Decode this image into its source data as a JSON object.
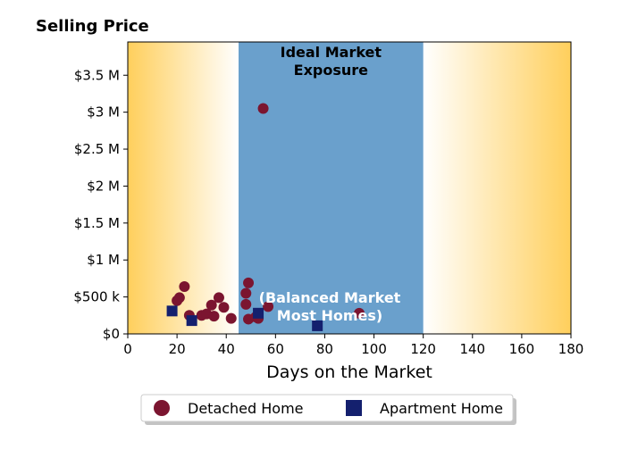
{
  "chart_data": {
    "type": "scatter",
    "title": "Selling Price",
    "xlabel": "Days on the Market",
    "ylabel": "",
    "xlim": [
      0,
      180
    ],
    "ylim": [
      0,
      3950000
    ],
    "x_ticks": [
      0,
      20,
      40,
      60,
      80,
      100,
      120,
      140,
      160,
      180
    ],
    "y_ticks": [
      {
        "value": 0,
        "label": "$0"
      },
      {
        "value": 500000,
        "label": "$500 k"
      },
      {
        "value": 1000000,
        "label": "$1 M"
      },
      {
        "value": 1500000,
        "label": "$1.5 M"
      },
      {
        "value": 2000000,
        "label": "$2 M"
      },
      {
        "value": 2500000,
        "label": "$2.5 M"
      },
      {
        "value": 3000000,
        "label": "$3 M"
      },
      {
        "value": 3500000,
        "label": "$3.5 M"
      }
    ],
    "grid": false,
    "legend_position": "bottom-center",
    "background": {
      "left_gradient_range": [
        0,
        45
      ],
      "ideal_band_range": [
        45,
        120
      ],
      "right_gradient_range": [
        120,
        180
      ],
      "gradient_color": "#ffcf5c",
      "band_color": "#6aa0cc",
      "top_label_lines": [
        "Ideal Market",
        "Exposure"
      ],
      "bottom_label_lines": [
        "(Balanced Market",
        "Most Homes)"
      ]
    },
    "series": [
      {
        "name": "Detached Home",
        "marker": "circle",
        "color": "#7b1530",
        "points": [
          [
            20,
            450000
          ],
          [
            21,
            490000
          ],
          [
            23,
            640000
          ],
          [
            25,
            250000
          ],
          [
            30,
            250000
          ],
          [
            32,
            270000
          ],
          [
            34,
            390000
          ],
          [
            35,
            240000
          ],
          [
            37,
            490000
          ],
          [
            39,
            360000
          ],
          [
            42,
            210000
          ],
          [
            48,
            550000
          ],
          [
            48,
            400000
          ],
          [
            49,
            690000
          ],
          [
            49,
            200000
          ],
          [
            52,
            230000
          ],
          [
            53,
            210000
          ],
          [
            55,
            3050000
          ],
          [
            57,
            370000
          ],
          [
            94,
            280000
          ]
        ]
      },
      {
        "name": "Apartment Home",
        "marker": "square",
        "color": "#14206e",
        "points": [
          [
            18,
            310000
          ],
          [
            26,
            180000
          ],
          [
            53,
            280000
          ],
          [
            77,
            110000
          ]
        ]
      }
    ]
  }
}
